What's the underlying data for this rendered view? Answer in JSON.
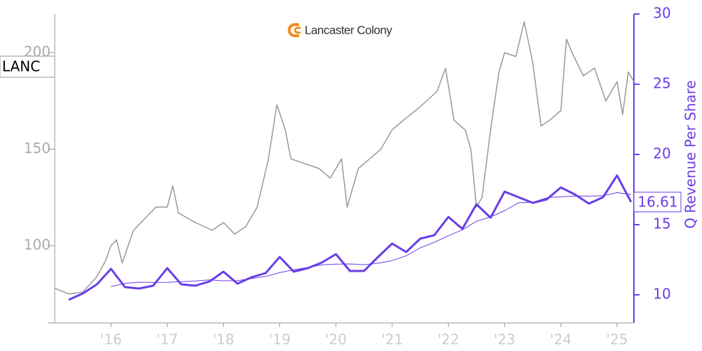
{
  "chart_data": {
    "type": "line",
    "logo_text": "Lancaster Colony",
    "y2label": "Q Revenue Per Share",
    "xlim": [
      2015.0,
      2025.3
    ],
    "xticks": [
      {
        "value": 2016,
        "label": "'16"
      },
      {
        "value": 2017,
        "label": "'17"
      },
      {
        "value": 2018,
        "label": "'18"
      },
      {
        "value": 2019,
        "label": "'19"
      },
      {
        "value": 2020,
        "label": "'20"
      },
      {
        "value": 2021,
        "label": "'21"
      },
      {
        "value": 2022,
        "label": "'22"
      },
      {
        "value": 2023,
        "label": "'23"
      },
      {
        "value": 2024,
        "label": "'24"
      },
      {
        "value": 2025,
        "label": "'25"
      }
    ],
    "ylim": [
      60,
      220
    ],
    "yticks": [
      100,
      150,
      200
    ],
    "y2lim": [
      8,
      30
    ],
    "y2ticks": [
      10,
      15,
      20,
      25,
      30
    ],
    "series": [
      {
        "name": "LANC",
        "color": "#999999",
        "x": [
          2015.0,
          2015.25,
          2015.5,
          2015.75,
          2015.9,
          2016.0,
          2016.1,
          2016.2,
          2016.4,
          2016.6,
          2016.8,
          2017.0,
          2017.1,
          2017.2,
          2017.5,
          2017.8,
          2018.0,
          2018.2,
          2018.4,
          2018.6,
          2018.8,
          2018.95,
          2019.1,
          2019.2,
          2019.5,
          2019.7,
          2019.9,
          2020.1,
          2020.2,
          2020.4,
          2020.6,
          2020.8,
          2021.0,
          2021.2,
          2021.5,
          2021.8,
          2021.95,
          2022.1,
          2022.3,
          2022.4,
          2022.5,
          2022.6,
          2022.75,
          2022.9,
          2023.0,
          2023.2,
          2023.35,
          2023.5,
          2023.65,
          2023.8,
          2024.0,
          2024.1,
          2024.2,
          2024.4,
          2024.6,
          2024.8,
          2025.0,
          2025.1,
          2025.2,
          2025.3
        ],
        "values": [
          78,
          75,
          76,
          84,
          92,
          100,
          103,
          91,
          108,
          114,
          120,
          120,
          131,
          117,
          112,
          108,
          112,
          106,
          110,
          120,
          145,
          173,
          160,
          145,
          142,
          140,
          135,
          145,
          120,
          140,
          145,
          150,
          160,
          165,
          172,
          180,
          192,
          165,
          160,
          150,
          120,
          125,
          160,
          190,
          200,
          198,
          216,
          195,
          162,
          165,
          170,
          207,
          200,
          188,
          192,
          175,
          185,
          168,
          190,
          185
        ]
      },
      {
        "color": "#6a3de8",
        "axis": "y2",
        "width": 3,
        "x": [
          2015.25,
          2015.5,
          2015.75,
          2016.0,
          2016.25,
          2016.5,
          2016.75,
          2017.0,
          2017.25,
          2017.5,
          2017.75,
          2018.0,
          2018.25,
          2018.5,
          2018.75,
          2019.0,
          2019.25,
          2019.5,
          2019.75,
          2020.0,
          2020.25,
          2020.5,
          2020.75,
          2021.0,
          2021.25,
          2021.5,
          2021.75,
          2022.0,
          2022.25,
          2022.5,
          2022.75,
          2023.0,
          2023.25,
          2023.5,
          2023.75,
          2024.0,
          2024.25,
          2024.5,
          2024.75,
          2025.0,
          2025.25
        ],
        "values": [
          9.65,
          10.1,
          10.75,
          11.85,
          10.55,
          10.45,
          10.65,
          11.9,
          10.75,
          10.65,
          10.95,
          11.65,
          10.8,
          11.25,
          11.55,
          12.7,
          11.65,
          11.9,
          12.3,
          12.9,
          11.7,
          11.7,
          12.7,
          13.65,
          13.05,
          14,
          14.25,
          15.55,
          14.7,
          16.45,
          15.5,
          17.35,
          16.95,
          16.55,
          16.8,
          17.65,
          17.15,
          16.5,
          16.95,
          18.5,
          16.61
        ]
      },
      {
        "color": "#6a3de8",
        "axis": "y2",
        "width": 1,
        "x": [
          2015.25,
          2015.5,
          2015.75,
          2016.0,
          2016.25,
          2016.5,
          2016.75,
          2017.0,
          2017.25,
          2017.5,
          2017.75,
          2018.0,
          2018.25,
          2018.5,
          2018.75,
          2019.0,
          2019.25,
          2019.5,
          2019.75,
          2020.0,
          2020.25,
          2020.5,
          2020.75,
          2021.0,
          2021.25,
          2021.5,
          2021.75,
          2022.0,
          2022.25,
          2022.5,
          2022.75,
          2023.0,
          2023.25,
          2023.5,
          2023.75,
          2024.0,
          2024.25,
          2024.5,
          2024.75,
          2025.0,
          2025.25
        ],
        "values": [
          null,
          null,
          null,
          10.59,
          10.81,
          10.9,
          10.88,
          10.89,
          10.94,
          10.99,
          11.06,
          11.0,
          11.01,
          11.16,
          11.31,
          11.58,
          11.79,
          11.95,
          12.14,
          12.19,
          12.2,
          12.15,
          12.25,
          12.44,
          12.78,
          13.35,
          13.74,
          14.21,
          14.63,
          15.24,
          15.55,
          16.0,
          16.56,
          16.59,
          16.91,
          16.99,
          17.04,
          17.03,
          17.06,
          17.28,
          17.14
        ]
      }
    ]
  }
}
